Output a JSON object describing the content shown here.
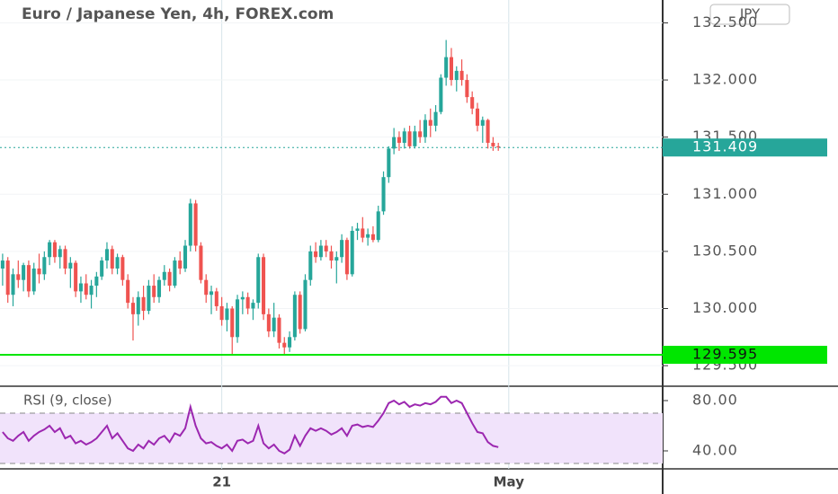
{
  "chart_data": [
    {
      "type": "candlestick",
      "title": "Euro / Japanese Yen, 4h, FOREX.com",
      "unit": "JPY",
      "ohlc": [
        [
          130.35,
          130.48,
          130.2,
          130.42
        ],
        [
          130.42,
          130.45,
          130.05,
          130.12
        ],
        [
          130.12,
          130.35,
          130.02,
          130.3
        ],
        [
          130.3,
          130.42,
          130.18,
          130.25
        ],
        [
          130.25,
          130.4,
          130.15,
          130.38
        ],
        [
          130.38,
          130.42,
          130.1,
          130.15
        ],
        [
          130.15,
          130.4,
          130.12,
          130.35
        ],
        [
          130.35,
          130.48,
          130.22,
          130.3
        ],
        [
          130.3,
          130.5,
          130.25,
          130.45
        ],
        [
          130.45,
          130.6,
          130.38,
          130.58
        ],
        [
          130.58,
          130.6,
          130.4,
          130.45
        ],
        [
          130.45,
          130.55,
          130.35,
          130.52
        ],
        [
          130.52,
          130.55,
          130.3,
          130.35
        ],
        [
          130.35,
          130.45,
          130.18,
          130.4
        ],
        [
          130.4,
          130.42,
          130.1,
          130.15
        ],
        [
          130.15,
          130.28,
          130.05,
          130.22
        ],
        [
          130.22,
          130.3,
          130.08,
          130.12
        ],
        [
          130.12,
          130.25,
          130.0,
          130.2
        ],
        [
          130.2,
          130.32,
          130.1,
          130.28
        ],
        [
          130.28,
          130.45,
          130.25,
          130.42
        ],
        [
          130.42,
          130.58,
          130.35,
          130.52
        ],
        [
          130.52,
          130.55,
          130.3,
          130.35
        ],
        [
          130.35,
          130.48,
          130.3,
          130.45
        ],
        [
          130.45,
          130.47,
          130.2,
          130.25
        ],
        [
          130.25,
          130.3,
          130.0,
          130.05
        ],
        [
          130.05,
          130.1,
          129.72,
          129.95
        ],
        [
          129.95,
          130.15,
          129.85,
          130.1
        ],
        [
          130.1,
          130.2,
          129.9,
          129.98
        ],
        [
          129.98,
          130.25,
          129.95,
          130.2
        ],
        [
          130.2,
          130.3,
          130.05,
          130.1
        ],
        [
          130.1,
          130.28,
          130.05,
          130.25
        ],
        [
          130.25,
          130.38,
          130.2,
          130.32
        ],
        [
          130.32,
          130.35,
          130.15,
          130.2
        ],
        [
          130.2,
          130.45,
          130.18,
          130.42
        ],
        [
          130.42,
          130.5,
          130.3,
          130.35
        ],
        [
          130.35,
          130.6,
          130.32,
          130.55
        ],
        [
          130.55,
          130.96,
          130.5,
          130.92
        ],
        [
          130.92,
          130.95,
          130.5,
          130.55
        ],
        [
          130.55,
          130.58,
          130.22,
          130.25
        ],
        [
          130.25,
          130.3,
          130.05,
          130.12
        ],
        [
          130.12,
          130.2,
          129.95,
          130.15
        ],
        [
          130.15,
          130.18,
          129.98,
          130.02
        ],
        [
          130.02,
          130.1,
          129.85,
          129.9
        ],
        [
          129.9,
          130.05,
          129.8,
          130.0
        ],
        [
          130.0,
          130.02,
          129.6,
          129.75
        ],
        [
          129.75,
          130.12,
          129.7,
          130.08
        ],
        [
          130.08,
          130.15,
          129.95,
          130.1
        ],
        [
          130.1,
          130.14,
          129.95,
          130.0
        ],
        [
          130.0,
          130.08,
          129.9,
          130.05
        ],
        [
          130.05,
          130.48,
          130.0,
          130.45
        ],
        [
          130.45,
          130.48,
          129.9,
          129.95
        ],
        [
          129.95,
          130.0,
          129.75,
          129.8
        ],
        [
          129.8,
          130.05,
          129.75,
          129.92
        ],
        [
          129.92,
          129.95,
          129.65,
          129.7
        ],
        [
          129.7,
          129.75,
          129.6,
          129.66
        ],
        [
          129.66,
          129.8,
          129.62,
          129.75
        ],
        [
          129.75,
          130.15,
          129.72,
          130.12
        ],
        [
          130.12,
          130.15,
          129.78,
          129.82
        ],
        [
          129.82,
          130.3,
          129.8,
          130.25
        ],
        [
          130.25,
          130.55,
          130.2,
          130.5
        ],
        [
          130.5,
          130.58,
          130.4,
          130.45
        ],
        [
          130.45,
          130.6,
          130.42,
          130.55
        ],
        [
          130.55,
          130.6,
          130.45,
          130.5
        ],
        [
          130.5,
          130.55,
          130.35,
          130.42
        ],
        [
          130.42,
          130.5,
          130.22,
          130.45
        ],
        [
          130.45,
          130.65,
          130.4,
          130.6
        ],
        [
          130.6,
          130.62,
          130.25,
          130.3
        ],
        [
          130.3,
          130.72,
          130.28,
          130.68
        ],
        [
          130.68,
          130.75,
          130.6,
          130.7
        ],
        [
          130.7,
          130.8,
          130.58,
          130.62
        ],
        [
          130.62,
          130.7,
          130.55,
          130.65
        ],
        [
          130.65,
          130.72,
          130.58,
          130.6
        ],
        [
          130.6,
          130.9,
          130.58,
          130.85
        ],
        [
          130.85,
          131.2,
          130.82,
          131.15
        ],
        [
          131.15,
          131.42,
          131.1,
          131.4
        ],
        [
          131.4,
          131.58,
          131.35,
          131.5
        ],
        [
          131.5,
          131.55,
          131.38,
          131.45
        ],
        [
          131.45,
          131.58,
          131.4,
          131.55
        ],
        [
          131.55,
          131.6,
          131.4,
          131.42
        ],
        [
          131.42,
          131.6,
          131.4,
          131.55
        ],
        [
          131.55,
          131.65,
          131.45,
          131.5
        ],
        [
          131.5,
          131.7,
          131.45,
          131.65
        ],
        [
          131.65,
          131.75,
          131.5,
          131.6
        ],
        [
          131.6,
          131.78,
          131.55,
          131.72
        ],
        [
          131.72,
          132.05,
          131.7,
          132.02
        ],
        [
          132.02,
          132.35,
          131.95,
          132.2
        ],
        [
          132.2,
          132.28,
          131.95,
          132.0
        ],
        [
          132.0,
          132.12,
          131.9,
          132.08
        ],
        [
          132.08,
          132.18,
          131.95,
          132.0
        ],
        [
          132.0,
          132.05,
          131.8,
          131.85
        ],
        [
          131.85,
          131.9,
          131.7,
          131.75
        ],
        [
          131.75,
          131.8,
          131.55,
          131.6
        ],
        [
          131.6,
          131.68,
          131.45,
          131.65
        ],
        [
          131.65,
          131.66,
          131.4,
          131.45
        ],
        [
          131.45,
          131.5,
          131.38,
          131.42
        ],
        [
          131.42,
          131.45,
          131.38,
          131.41
        ]
      ],
      "up_color": "#26a69a",
      "down_color": "#ef5350",
      "xlim": [
        -0.5,
        126.5
      ],
      "xticks": [
        {
          "value": 42,
          "label": "21"
        },
        {
          "value": 97,
          "label": "May"
        }
      ],
      "ylim": [
        129.32,
        132.7
      ],
      "yticks": [
        {
          "value": 132.5,
          "label": "132.500"
        },
        {
          "value": 132,
          "label": "132.000"
        },
        {
          "value": 131.5,
          "label": "131.500"
        },
        {
          "value": 131,
          "label": "131.000"
        },
        {
          "value": 130.5,
          "label": "130.500"
        },
        {
          "value": 130,
          "label": "130.000"
        },
        {
          "value": 129.5,
          "label": "129.500"
        }
      ],
      "last_price": 131.409,
      "last_price_color": "#26a69a",
      "level": 129.595,
      "level_color": "#00e600",
      "grid": true
    },
    {
      "type": "line",
      "title": "RSI (9, close)",
      "color": "#9c27b0",
      "values": [
        55,
        50,
        48,
        52,
        55,
        48,
        52,
        55,
        57,
        60,
        55,
        58,
        50,
        52,
        46,
        48,
        45,
        47,
        50,
        55,
        60,
        50,
        54,
        48,
        42,
        40,
        45,
        42,
        48,
        45,
        50,
        52,
        47,
        54,
        52,
        58,
        75,
        60,
        50,
        46,
        47,
        44,
        42,
        45,
        40,
        48,
        49,
        46,
        48,
        60,
        46,
        42,
        45,
        40,
        38,
        41,
        52,
        44,
        52,
        58,
        56,
        58,
        56,
        53,
        55,
        58,
        52,
        60,
        61,
        59,
        60,
        59,
        64,
        70,
        78,
        80,
        77,
        79,
        75,
        77,
        76,
        78,
        77,
        79,
        83,
        83,
        78,
        80,
        78,
        70,
        62,
        55,
        54,
        47,
        44,
        43
      ],
      "xlim": [
        -0.5,
        126.5
      ],
      "ylim": [
        25.7,
        90
      ],
      "yticks": [
        {
          "value": 80,
          "label": "80.00"
        },
        {
          "value": 40,
          "label": "40.00"
        }
      ],
      "bands": [
        30,
        70
      ],
      "band_color": "#f1e3fb"
    }
  ]
}
